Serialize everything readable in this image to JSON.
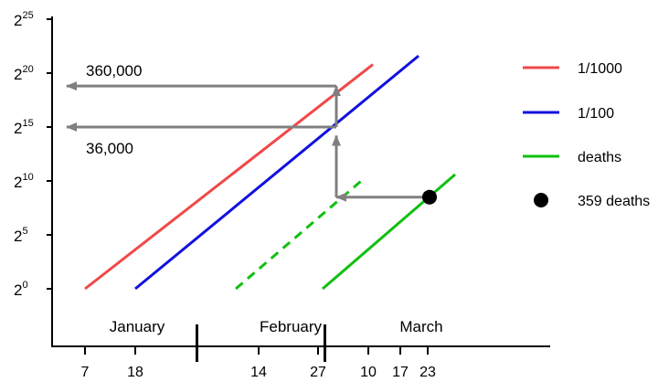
{
  "chart_data": {
    "type": "line",
    "title": "",
    "xlabel": "",
    "ylabel": "",
    "y_scale": "log2",
    "y_ticks": [
      {
        "base": "2",
        "exp": "0",
        "value": 0
      },
      {
        "base": "2",
        "exp": "5",
        "value": 5
      },
      {
        "base": "2",
        "exp": "10",
        "value": 10
      },
      {
        "base": "2",
        "exp": "15",
        "value": 15
      },
      {
        "base": "2",
        "exp": "20",
        "value": 20
      },
      {
        "base": "2",
        "exp": "25",
        "value": 25
      }
    ],
    "x_ticks": [
      {
        "label": "7",
        "date": "Jan 7"
      },
      {
        "label": "18",
        "date": "Jan 18"
      },
      {
        "label": "14",
        "date": "Feb 14"
      },
      {
        "label": "27",
        "date": "Feb 27"
      },
      {
        "label": "10",
        "date": "Mar 10"
      },
      {
        "label": "17",
        "date": "Mar 17"
      },
      {
        "label": "23",
        "date": "Mar 23"
      }
    ],
    "month_dividers": [
      "Feb 1",
      "Mar 1"
    ],
    "months": [
      "January",
      "February",
      "March"
    ],
    "series": [
      {
        "name": "1/1000",
        "color": "#f04848",
        "style": "solid",
        "points": [
          {
            "x": "Jan 7",
            "y": 0
          },
          {
            "x": "Mar 11",
            "y": 20.8
          }
        ]
      },
      {
        "name": "1/100",
        "color": "#1010e0",
        "style": "solid",
        "points": [
          {
            "x": "Jan 18",
            "y": 0
          },
          {
            "x": "Mar 21",
            "y": 21.6
          }
        ]
      },
      {
        "name": "deaths",
        "color": "#10c010",
        "style": "solid",
        "points": [
          {
            "x": "Feb 28",
            "y": 0
          },
          {
            "x": "Mar 29",
            "y": 10.6
          }
        ]
      },
      {
        "name": "",
        "color": "#10c010",
        "style": "dashed",
        "points": [
          {
            "x": "Feb 9",
            "y": 0
          },
          {
            "x": "Mar 9",
            "y": 10.2
          }
        ]
      }
    ],
    "marker": {
      "label": "359 deaths",
      "x": "Mar 23",
      "y": 8.5,
      "color": "#000000"
    },
    "arrows": [
      {
        "from": {
          "x": "Mar 23",
          "y": 8.5
        },
        "to": {
          "x": "Mar 3",
          "y": 8.5
        }
      },
      {
        "from": {
          "x": "Mar 3",
          "y": 8.5
        },
        "to": {
          "x": "Mar 3",
          "y": 14.2
        }
      },
      {
        "from": {
          "x": "Mar 3",
          "y": 15.0
        },
        "to": {
          "x": "Mar 3",
          "y": 18.8
        }
      },
      {
        "from": {
          "x": "Mar 3",
          "y": 15.0
        },
        "to": {
          "x": "Jan 3",
          "y": 15.0
        }
      },
      {
        "from": {
          "x": "Mar 3",
          "y": 18.8
        },
        "to": {
          "x": "Jan 3",
          "y": 18.8
        }
      }
    ],
    "annotations": [
      {
        "text": "360,000"
      },
      {
        "text": "36,000"
      }
    ],
    "legend": {
      "placement": "right",
      "entries": [
        {
          "label": "1/1000",
          "color": "#f04848",
          "kind": "line"
        },
        {
          "label": "1/100",
          "color": "#1010e0",
          "kind": "line"
        },
        {
          "label": "deaths",
          "color": "#10c010",
          "kind": "line"
        },
        {
          "label": "359 deaths",
          "color": "#000000",
          "kind": "dot"
        }
      ]
    },
    "arrow_color": "#808080"
  }
}
